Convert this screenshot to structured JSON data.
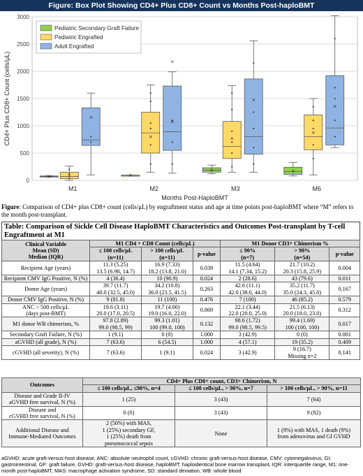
{
  "figure_title": "Figure: Box Plot Showing CD4+ Plus CD8+ Count vs Months Post-haploBMT",
  "chart_data": {
    "type": "box",
    "xlabel": "Months Post-HaploBMT",
    "ylabel": "CD4+ Plus CD8+ Count (cells/μL)",
    "ylim": [
      0,
      3000
    ],
    "yticks": [
      0,
      500,
      1000,
      1500,
      2000,
      2500,
      3000
    ],
    "grid": true,
    "legend_position": "top-left",
    "categories": [
      "M1",
      "M2",
      "M3",
      "M6"
    ],
    "series": [
      {
        "name": "Pediatric Secondary Graft Failure",
        "color": "#92d050",
        "boxes": {
          "M1": {
            "min": 60,
            "q1": 65,
            "median": 70,
            "q3": 80,
            "max": 85,
            "mean": 70,
            "points": []
          },
          "M2": {
            "min": 95,
            "q1": 95,
            "median": 95,
            "q3": 95,
            "max": 95,
            "mean": 95,
            "points": []
          },
          "M3": {
            "min": 120,
            "q1": 150,
            "median": 185,
            "q3": 230,
            "max": 280,
            "mean": 190,
            "points": []
          },
          "M6": {
            "min": 80,
            "q1": 110,
            "median": 160,
            "q3": 240,
            "max": 330,
            "mean": 170,
            "points": []
          }
        }
      },
      {
        "name": "Pediatric Engrafted",
        "color": "#ffd966",
        "boxes": {
          "M1": {
            "min": 0,
            "q1": 30,
            "median": 70,
            "q3": 150,
            "max": 260,
            "mean": 90,
            "points": [
              40,
              120,
              200
            ]
          },
          "M2": {
            "min": 150,
            "q1": 500,
            "median": 870,
            "q3": 1250,
            "max": 1750,
            "mean": 800,
            "points": [
              300,
              650,
              950,
              1050,
              1450,
              1600
            ]
          },
          "M3": {
            "min": 150,
            "q1": 400,
            "median": 620,
            "q3": 1080,
            "max": 1740,
            "mean": 770,
            "points": [
              250,
              500,
              700,
              900,
              1300,
              1600
            ]
          },
          "M6": {
            "min": 100,
            "q1": 560,
            "median": 800,
            "q3": 1200,
            "max": 1500,
            "mean": 880,
            "points": [
              400,
              650,
              950,
              1100,
              1350
            ]
          }
        }
      },
      {
        "name": "Adult Engrafted",
        "color": "#8fb4e3",
        "boxes": {
          "M1": {
            "min": 100,
            "q1": 640,
            "median": 740,
            "q3": 1330,
            "max": 1600,
            "mean": 1160,
            "points": [
              700,
              800
            ]
          },
          "M2": {
            "min": 130,
            "q1": 550,
            "median": 890,
            "q3": 1730,
            "max": 1990,
            "mean": 1080,
            "outliers": [
              2180
            ],
            "points": [
              300,
              700,
              1100
            ]
          },
          "M3": {
            "min": 150,
            "q1": 480,
            "median": 800,
            "q3": 1860,
            "max": 2560,
            "mean": 1480,
            "points": [
              300,
              600,
              950,
              1250,
              2150
            ]
          },
          "M6": {
            "min": 600,
            "q1": 650,
            "median": 960,
            "q3": 1920,
            "max": 3020,
            "mean": 1360,
            "points": [
              800,
              1100,
              1500,
              1700,
              2600
            ]
          }
        }
      }
    ]
  },
  "caption": {
    "label": "Figure",
    "text": ": Comparison of CD4+ plus CD8+ count (cells/μL) by engraftment status and age at time points post-haploBMT where “M” refers to the month post-transplant."
  },
  "table1": {
    "title": "Table: Comparison of Sickle Cell Disease HaploBMT Characteristics and Outcomes Post-transplant by T-cell Engraftment at M1",
    "header_var": "Clinical Variable\nMean (SD)\nMedian (IQR)",
    "group1": "M1 CD4 + CD8 Count (cells/μL)",
    "group2": "M1 Donor CD3+ Chimerism %",
    "sub": [
      "≤ 100 cells/μL\n(n=11)",
      "> 100 cells/μL\n(n=11)",
      "p-value",
      "≤ 90%\n(n=7)",
      "> 90%\n(n=54)",
      "p-value"
    ],
    "rows": [
      [
        "Recipient Age (years)",
        "11.3 (5.25)\n13.5 (6.98, 14.7)",
        "16.9 (7.33)\n18.2 (13.8, 21.0)",
        "0.039",
        "11.5 (4.64)\n14.1 (7.34, 15.2)",
        "21.7 (10.2)\n20.3 (15.8, 25.9)",
        "0.004"
      ],
      [
        "Recipient CMV IgG Positive, N (%)",
        "4 (36.4)",
        "10 (90.9)",
        "0.024",
        "2 (28.6)",
        "43 (79.6)",
        "0.011"
      ],
      [
        "Donor Age (years)",
        "39.7 (11.7)\n40.0 (32.5, 45.0)",
        "34.2 (10.8)\n36.0 (23.5, 41.5)",
        "0.263",
        "42.6 (11.1)\n42.0 (38.0, 44.0)",
        "35.2 (11.7)\n35.0 (24.3, 45.0)",
        "0.167"
      ],
      [
        "Donor CMV IgG Positive, N (%)",
        "9 (81.8)",
        "11 (100)",
        "0.476",
        "7 (100)",
        "46 (85.2)",
        "0.579"
      ],
      [
        "ANC > 500 cells/μL\n(days post-BMT)",
        "19.6 (3.11)\n20.0 (17.0, 20.5)",
        "19.7 (4.00)\n19.0 (16.0, 22.0)",
        "0.869",
        "22.1 (3.44)\n22.0 (20.0, 25.0)",
        "21.5 (6.13)\n20.0 (18.0, 23.0)",
        "0.312"
      ],
      [
        "M1 donor WB chimerism, %",
        "97.8 (2.89)\n99.0 (98.5, 99)",
        "99.3 (1.01)\n100 (99.0, 100)",
        "0.132",
        "98.6 (1.72)\n99.0 (98.5, 99.5)",
        "99.4 (1.69)\n100 (100, 100)",
        "0.017"
      ],
      [
        "Secondary Graft Failure, N (%)",
        "1 (9.1)",
        "0 (0)",
        "1.000",
        "3 (42.9)",
        "0 (0)",
        "0.001"
      ],
      [
        "aGVHD (all grade), N (%)",
        "7 (63.6)",
        "6 (54.5)",
        "1.000",
        "4 (57.1)",
        "19 (35.2)",
        "0.409"
      ],
      [
        "cGVHD (all severity), N (%)",
        "7 (63.6)",
        "1 (9.1)",
        "0.024",
        "3 (42.9)",
        "9 (16.7)\nMissing n=2",
        "0.141"
      ]
    ]
  },
  "table2": {
    "head_left": "Outcomes",
    "head_group": "CD4+ Plus CD8+ count, CD3+ Chimerism, N",
    "sub": [
      "≤ 100 cells/μL, ≤90%, n=4",
      "≤ 100 cells/μL, > 90%, n=7",
      "> 100 cells/μL, > 90%, n=11"
    ],
    "rows": [
      [
        "Disease and Grade II-IV\naGVHD free survival, N (%)",
        "1 (25)",
        "3 (43)",
        "7 (64)"
      ],
      [
        "Disease and\ncGVHD free survival, N (%)",
        "0 (0)",
        "3 (43)",
        "9 (82)"
      ],
      [
        "Additional Disease and\nImmune-Mediated Outcomes",
        "2 (50%) with MAS,\n1 (25%) secondary GF,\n1 (25%) death from\npneumococcal sepsis",
        "None",
        "1 (9%) with MAS, 1 death (9%)\nfrom adenovirus and GI GVHD"
      ]
    ]
  },
  "footnote": "aGVHD: acute graft-versus-host disease, ANC: absolute neutrophil count, cGVHD: chronic graft-versus-host disease, CMV: cytomegalovirus, GI: gastrointestinal, GF: graft failure, GVHD: graft-versus-host disease, haploBMT: haploidentical bone marrow transplant, IQR: interquartile range, M1: one-month post-haploBMT, MAS: macrophage activation syndrome, SD: standard deviation, WB: whole blood"
}
